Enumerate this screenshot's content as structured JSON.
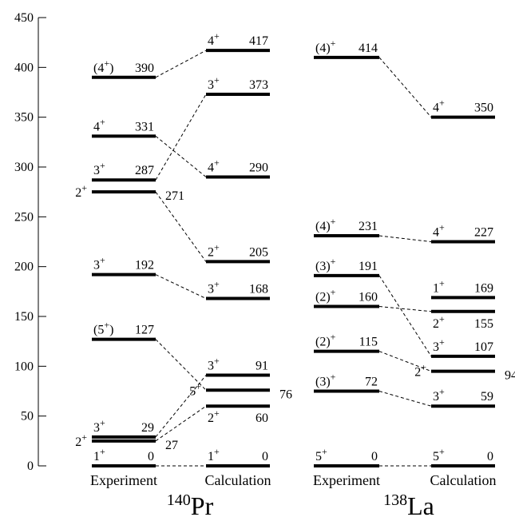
{
  "y_axis": {
    "ticks": [
      0,
      50,
      100,
      150,
      200,
      250,
      300,
      350,
      400,
      450
    ],
    "range": [
      0,
      450
    ]
  },
  "panels": [
    {
      "key": "pr140",
      "mass": "140",
      "element": "Pr",
      "columns": {
        "exp": {
          "label": "Experiment",
          "levels": [
            {
              "energy": 0,
              "spin": "1",
              "parity": "+",
              "energy_label": "0"
            },
            {
              "energy": 25,
              "spin": "2",
              "parity": "+",
              "energy_label": "27"
            },
            {
              "energy": 29,
              "spin": "3",
              "parity": "+",
              "energy_label": "29"
            },
            {
              "energy": 127,
              "spin": "(5",
              "parity": "+",
              "spin_suffix": ")",
              "energy_label": "127"
            },
            {
              "energy": 192,
              "spin": "3",
              "parity": "+",
              "energy_label": "192"
            },
            {
              "energy": 275,
              "spin": "2",
              "parity": "+",
              "energy_label": "271"
            },
            {
              "energy": 287,
              "spin": "3",
              "parity": "+",
              "energy_label": "287"
            },
            {
              "energy": 331,
              "spin": "4",
              "parity": "+",
              "energy_label": "331"
            },
            {
              "energy": 390,
              "spin": "(4",
              "parity": "+",
              "spin_suffix": ")",
              "energy_label": "390"
            }
          ]
        },
        "calc": {
          "label": "Calculation",
          "levels": [
            {
              "energy": 0,
              "spin": "1",
              "parity": "+",
              "energy_label": "0"
            },
            {
              "energy": 60,
              "spin": "2",
              "parity": "+",
              "energy_label": "60"
            },
            {
              "energy": 76,
              "spin": "5",
              "parity": "+",
              "energy_label": "76"
            },
            {
              "energy": 91,
              "spin": "3",
              "parity": "+",
              "energy_label": "91"
            },
            {
              "energy": 168,
              "spin": "3",
              "parity": "+",
              "energy_label": "168"
            },
            {
              "energy": 205,
              "spin": "2",
              "parity": "+",
              "energy_label": "205"
            },
            {
              "energy": 290,
              "spin": "4",
              "parity": "+",
              "energy_label": "290"
            },
            {
              "energy": 373,
              "spin": "3",
              "parity": "+",
              "energy_label": "373"
            },
            {
              "energy": 417,
              "spin": "4",
              "parity": "+",
              "energy_label": "417"
            }
          ]
        }
      },
      "connections": [
        [
          0,
          0
        ],
        [
          2,
          3
        ],
        [
          1,
          1
        ],
        [
          3,
          2
        ],
        [
          4,
          4
        ],
        [
          5,
          5
        ],
        [
          6,
          7
        ],
        [
          7,
          6
        ],
        [
          8,
          8
        ]
      ]
    },
    {
      "key": "la138",
      "mass": "138",
      "element": "La",
      "columns": {
        "exp": {
          "label": "Experiment",
          "levels": [
            {
              "energy": 0,
              "spin": "5",
              "parity": "+",
              "energy_label": "0"
            },
            {
              "energy": 75,
              "spin": "(3)",
              "parity": "+",
              "energy_label": "72"
            },
            {
              "energy": 115,
              "spin": "(2)",
              "parity": "+",
              "energy_label": "115"
            },
            {
              "energy": 160,
              "spin": "(2)",
              "parity": "+",
              "energy_label": "160"
            },
            {
              "energy": 191,
              "spin": "(3)",
              "parity": "+",
              "energy_label": "191"
            },
            {
              "energy": 231,
              "spin": "(4)",
              "parity": "+",
              "energy_label": "231"
            },
            {
              "energy": 410,
              "spin": "(4)",
              "parity": "+",
              "energy_label": "414"
            }
          ]
        },
        "calc": {
          "label": "Calculation",
          "levels": [
            {
              "energy": 0,
              "spin": "5",
              "parity": "+",
              "energy_label": "0"
            },
            {
              "energy": 60,
              "spin": "3",
              "parity": "+",
              "energy_label": "59"
            },
            {
              "energy": 95,
              "spin": "2",
              "parity": "+",
              "energy_label": "94"
            },
            {
              "energy": 110,
              "spin": "3",
              "parity": "+",
              "energy_label": "107"
            },
            {
              "energy": 155,
              "spin": "2",
              "parity": "+",
              "energy_label": "155"
            },
            {
              "energy": 169,
              "spin": "1",
              "parity": "+",
              "energy_label": "169"
            },
            {
              "energy": 225,
              "spin": "4",
              "parity": "+",
              "energy_label": "227"
            },
            {
              "energy": 350,
              "spin": "4",
              "parity": "+",
              "energy_label": "350"
            }
          ]
        }
      },
      "connections": [
        [
          0,
          0
        ],
        [
          1,
          1
        ],
        [
          2,
          2
        ],
        [
          3,
          4
        ],
        [
          4,
          3
        ],
        [
          5,
          6
        ],
        [
          6,
          7
        ]
      ]
    }
  ]
}
